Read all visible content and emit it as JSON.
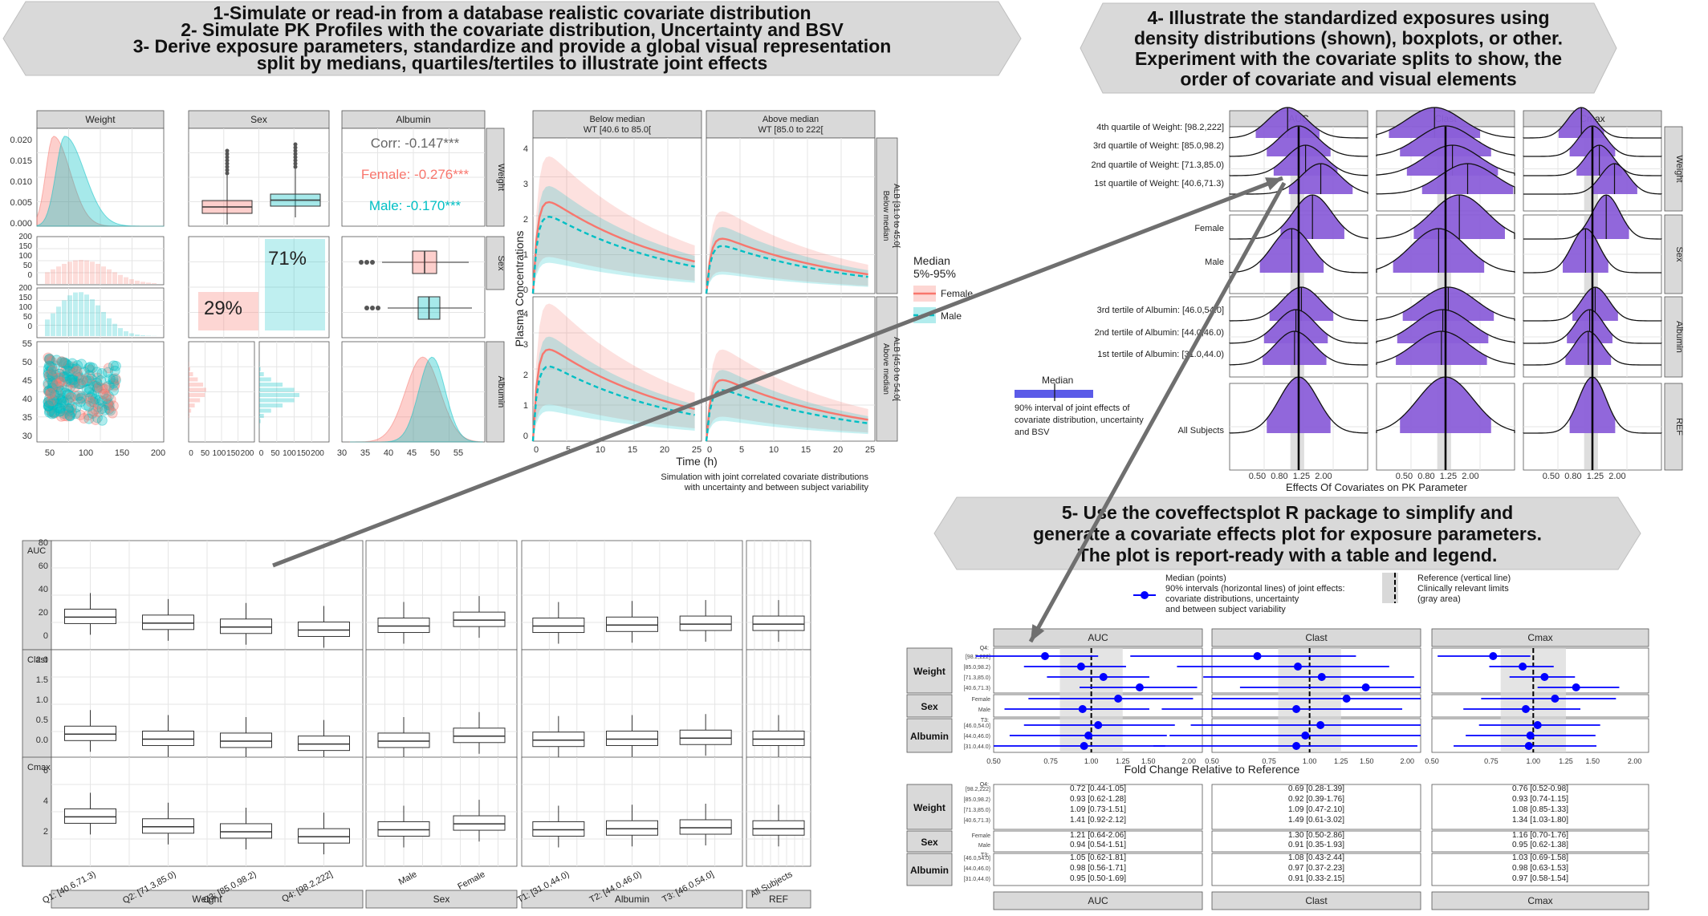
{
  "banners": {
    "b1": [
      "1-Simulate or read-in from a database realistic covariate distribution",
      "2- Simulate PK Profiles with the covariate distribution, Uncertainty and BSV",
      "3- Derive exposure parameters, standardize and provide a global visual representation",
      "split by medians, quartiles/tertiles to illustrate joint effects"
    ],
    "b4": [
      "4- Illustrate the standardized exposures using",
      "density distributions (shown), boxplots, or other.",
      "Experiment with the covariate splits to show, the",
      "order of covariate and visual elements"
    ],
    "b5": [
      "5-  Use the coveffectsplot R package to simplify and",
      "generate a covariate effects plot for exposure parameters.",
      "The plot is report-ready with a table and legend."
    ]
  },
  "colors": {
    "female": "#F8766D",
    "male": "#00BFC4",
    "violet": "#8B5FD9",
    "banner": "#D9D9D9",
    "arrow": "#6F6F6F",
    "point": "#0000FF"
  },
  "pairs": {
    "strips": [
      "Weight",
      "Sex",
      "Albumin"
    ],
    "corr": "Corr: -0.147***",
    "corr_female": "Female: -0.276***",
    "corr_male": "Male: -0.170***",
    "pct_female": "29%",
    "pct_male": "71%",
    "weight_yticks": [
      "0.020",
      "0.015",
      "0.010",
      "0.005",
      "0.000"
    ],
    "count_yticks": [
      "200",
      "150",
      "100",
      "50",
      "0",
      "200",
      "150",
      "100",
      "50",
      "0"
    ],
    "alb_yticks": [
      "55",
      "50",
      "45",
      "40",
      "35",
      "30"
    ],
    "x1": [
      "50",
      "100",
      "150",
      "200"
    ],
    "x2": [
      "0",
      "50",
      "100",
      "150",
      "200",
      "0",
      "50",
      "100",
      "150",
      "200"
    ],
    "x3": [
      "30",
      "35",
      "40",
      "45",
      "50",
      "55"
    ]
  },
  "pk": {
    "col_strips": [
      "Below median\nWT [40.6 to 85.0[",
      "Above median\nWT [85.0 to 222["
    ],
    "row_strips": [
      "Below median\nALB [31.0 to 45.0[",
      "Above median\nALB [45.0 to 54.0["
    ],
    "ylabel": "Plasma Concentrations",
    "xlabel": "Time (h)",
    "yticks": [
      "0",
      "1",
      "2",
      "3",
      "4"
    ],
    "xticks": [
      "0",
      "5",
      "10",
      "15",
      "20",
      "25"
    ],
    "caption": [
      "Simulation with joint correlated covariate distributions",
      "with uncertainty and between subject variability"
    ],
    "legend_title": [
      "Median",
      "5%-95%"
    ],
    "legend_items": [
      "Female",
      "Male"
    ]
  },
  "density": {
    "col_strips": [
      "AUC",
      "Clast",
      "Cmax"
    ],
    "row_strips": [
      "Weight",
      "Sex",
      "Albumin",
      "REF"
    ],
    "labels": [
      "4th quartile of Weight: [98.2,222]",
      "3rd quartile of Weight: [85.0,98.2)",
      "2nd quartile of Weight: [71.3,85.0)",
      "1st quartile of Weight: [40.6,71.3)",
      "Female",
      "Male",
      "3rd tertile of Albumin: [46.0,54.0]",
      "2nd tertile of Albumin: [44.0,46.0)",
      "1st tertile of Albumin: [31.0,44.0)",
      "All Subjects"
    ],
    "xticks": [
      "0.50",
      "0.80",
      "1.25",
      "2.00"
    ],
    "xlabel": "Effects Of Covariates on PK Parameter",
    "legend_median": "Median",
    "legend_text": [
      "90%  interval of joint effects of",
      "covariate distribution, uncertainty",
      "and BSV"
    ]
  },
  "boxplots": {
    "row_strips": [
      "AUC",
      "Clast",
      "Cmax"
    ],
    "col_strips": [
      "Weight",
      "Sex",
      "Albumin",
      "REF"
    ],
    "auc_ticks": [
      "80",
      "60",
      "40",
      "20",
      "0"
    ],
    "clast_ticks": [
      "2.0",
      "1.5",
      "1.0",
      "0.5",
      "0.0"
    ],
    "cmax_ticks": [
      "6",
      "4",
      "2"
    ],
    "xlabels": [
      "Q1: [40.6,71.3)",
      "Q2: [71.3,85.0)",
      "Q3: [85.0,98.2)",
      "Q4: [98.2,222]",
      "Male",
      "Female",
      "T1: [31.0,44.0)",
      "T2: [44.0,46.0)",
      "T3: [46.0,54.0]",
      "All Subjects"
    ]
  },
  "forest": {
    "legend": {
      "median": "Median (points)",
      "interval": [
        "90% intervals (horizontal lines) of joint effects:",
        "covariate distributions, uncertainty",
        "and between subject variability"
      ],
      "ref": "Reference (vertical line)",
      "limits": [
        "Clinically relevant limits",
        "(gray area)"
      ]
    },
    "params": [
      "AUC",
      "Clast",
      "Cmax"
    ],
    "groups": [
      "Weight",
      "Sex",
      "Albumin"
    ],
    "weight_levels": [
      "Q4:",
      "[98.2,222]",
      "[85.0,98.2)",
      "[71.3,85.0)",
      "[40.6,71.3)"
    ],
    "sex_levels": [
      "Female",
      "Male"
    ],
    "alb_levels": [
      "T3:",
      "[46.0,54.0]",
      "[44.0,46.0)",
      "[31.0,44.0)"
    ],
    "xticks": [
      "0.50",
      "0.75",
      "1.00",
      "1.25",
      "1.50",
      "2.00"
    ],
    "xlabel": "Fold Change Relative to Reference",
    "table": {
      "AUC": [
        "0.72 [0.44-1.05]",
        "0.93 [0.62-1.28]",
        "1.09 [0.73-1.51]",
        "1.41 [0.92-2.12]",
        "1.21 [0.64-2.06]",
        "0.94 [0.54-1.51]",
        "1.05 [0.62-1.81]",
        "0.98 [0.56-1.71]",
        "0.95 [0.50-1.69]"
      ],
      "Clast": [
        "0.69 [0.28-1.39]",
        "0.92 [0.39-1.76]",
        "1.09 [0.47-2.10]",
        "1.49 [0.61-3.02]",
        "1.30 [0.50-2.86]",
        "0.91 [0.35-1.93]",
        "1.08 [0.43-2.44]",
        "0.97 [0.37-2.23]",
        "0.91 [0.33-2.15]"
      ],
      "Cmax": [
        "0.76 [0.52-0.98]",
        "0.93 [0.74-1.15]",
        "1.08 [0.85-1.33]",
        "1.34 [1.03-1.80]",
        "1.16 [0.70-1.76]",
        "0.95 [0.62-1.38]",
        "1.03 [0.69-1.58]",
        "0.98 [0.63-1.53]",
        "0.97 [0.58-1.54]"
      ]
    }
  }
}
